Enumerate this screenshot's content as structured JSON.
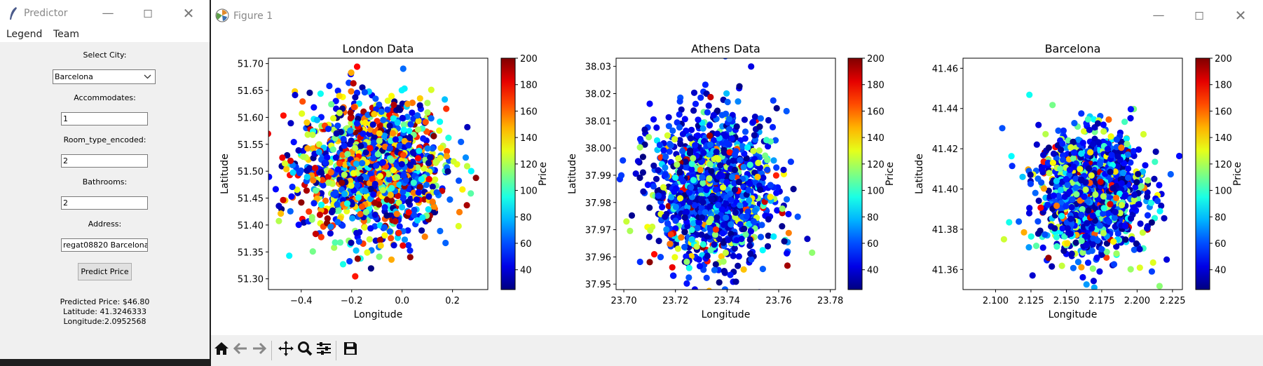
{
  "predictor": {
    "title": "Predictor",
    "menu": [
      "Legend",
      "Team"
    ],
    "select_city_label": "Select City:",
    "city_value": "Barcelona",
    "accommodates_label": "Accommodates:",
    "accommodates_value": "1",
    "room_type_label": "Room_type_encoded:",
    "room_type_value": "2",
    "bathrooms_label": "Bathrooms:",
    "bathrooms_value": "2",
    "address_label": "Address:",
    "address_value": "regat08820 Barcelona",
    "predict_button": "Predict Price",
    "result_price": "Predicted Price: $46.80",
    "result_lat": "Latitude: 41.3246333",
    "result_lon": "Longitude:2.0952568"
  },
  "figure": {
    "title": "Figure 1",
    "toolbar_icons": [
      "home-icon",
      "back-arrow-icon",
      "forward-arrow-icon",
      "pan-icon",
      "zoom-icon",
      "configure-subplots-icon",
      "save-icon"
    ]
  },
  "chart_data": [
    {
      "type": "scatter",
      "title": "London Data",
      "xlabel": "Longitude",
      "ylabel": "Latitude",
      "xlim": [
        -0.53,
        0.34
      ],
      "ylim": [
        51.28,
        51.71
      ],
      "xticks": [
        -0.4,
        -0.2,
        0.0,
        0.2
      ],
      "xtick_labels": [
        "−0.4",
        "−0.2",
        "0.0",
        "0.2"
      ],
      "yticks": [
        51.3,
        51.35,
        51.4,
        51.45,
        51.5,
        51.55,
        51.6,
        51.65,
        51.7
      ],
      "ytick_labels": [
        "51.30",
        "51.35",
        "51.40",
        "51.45",
        "51.50",
        "51.55",
        "51.60",
        "51.65",
        "51.70"
      ],
      "colorbar": {
        "label": "Price",
        "range": [
          25,
          200
        ],
        "ticks": [
          40,
          60,
          80,
          100,
          120,
          140,
          160,
          180,
          200
        ],
        "colormap": "jet"
      },
      "cluster": {
        "center": [
          -0.12,
          51.505
        ],
        "spread": [
          0.17,
          0.075
        ],
        "points": 1400,
        "high_price_share": 0.35
      }
    },
    {
      "type": "scatter",
      "title": "Athens Data",
      "xlabel": "Longitude",
      "ylabel": "Latitude",
      "xlim": [
        23.697,
        23.782
      ],
      "ylim": [
        37.948,
        38.033
      ],
      "xticks": [
        23.7,
        23.72,
        23.74,
        23.76,
        23.78
      ],
      "xtick_labels": [
        "23.70",
        "23.72",
        "23.74",
        "23.76",
        "23.78"
      ],
      "yticks": [
        37.95,
        37.96,
        37.97,
        37.98,
        37.99,
        38.0,
        38.01,
        38.02,
        38.03
      ],
      "ytick_labels": [
        "37.95",
        "37.96",
        "37.97",
        "37.98",
        "37.99",
        "38.00",
        "38.01",
        "38.02",
        "38.03"
      ],
      "colorbar": {
        "label": "Price",
        "range": [
          25,
          200
        ],
        "ticks": [
          40,
          60,
          80,
          100,
          120,
          140,
          160,
          180,
          200
        ],
        "colormap": "jet"
      },
      "cluster": {
        "center": [
          23.735,
          37.985
        ],
        "spread": [
          0.014,
          0.016
        ],
        "points": 1300,
        "high_price_share": 0.08
      }
    },
    {
      "type": "scatter",
      "title": "Barcelona",
      "xlabel": "Longitude",
      "ylabel": "Latitude",
      "xlim": [
        2.077,
        2.232
      ],
      "ylim": [
        41.35,
        41.465
      ],
      "xticks": [
        2.1,
        2.125,
        2.15,
        2.175,
        2.2,
        2.225
      ],
      "xtick_labels": [
        "2.100",
        "2.125",
        "2.150",
        "2.175",
        "2.200",
        "2.225"
      ],
      "yticks": [
        41.36,
        41.38,
        41.4,
        41.42,
        41.44,
        41.46
      ],
      "ytick_labels": [
        "41.36",
        "41.38",
        "41.40",
        "41.42",
        "41.44",
        "41.46"
      ],
      "colorbar": {
        "label": "Price",
        "range": [
          25,
          200
        ],
        "ticks": [
          40,
          60,
          80,
          100,
          120,
          140,
          160,
          180,
          200
        ],
        "colormap": "jet"
      },
      "cluster": {
        "center": [
          2.168,
          41.398
        ],
        "spread": [
          0.022,
          0.018
        ],
        "points": 1300,
        "high_price_share": 0.12
      }
    }
  ]
}
